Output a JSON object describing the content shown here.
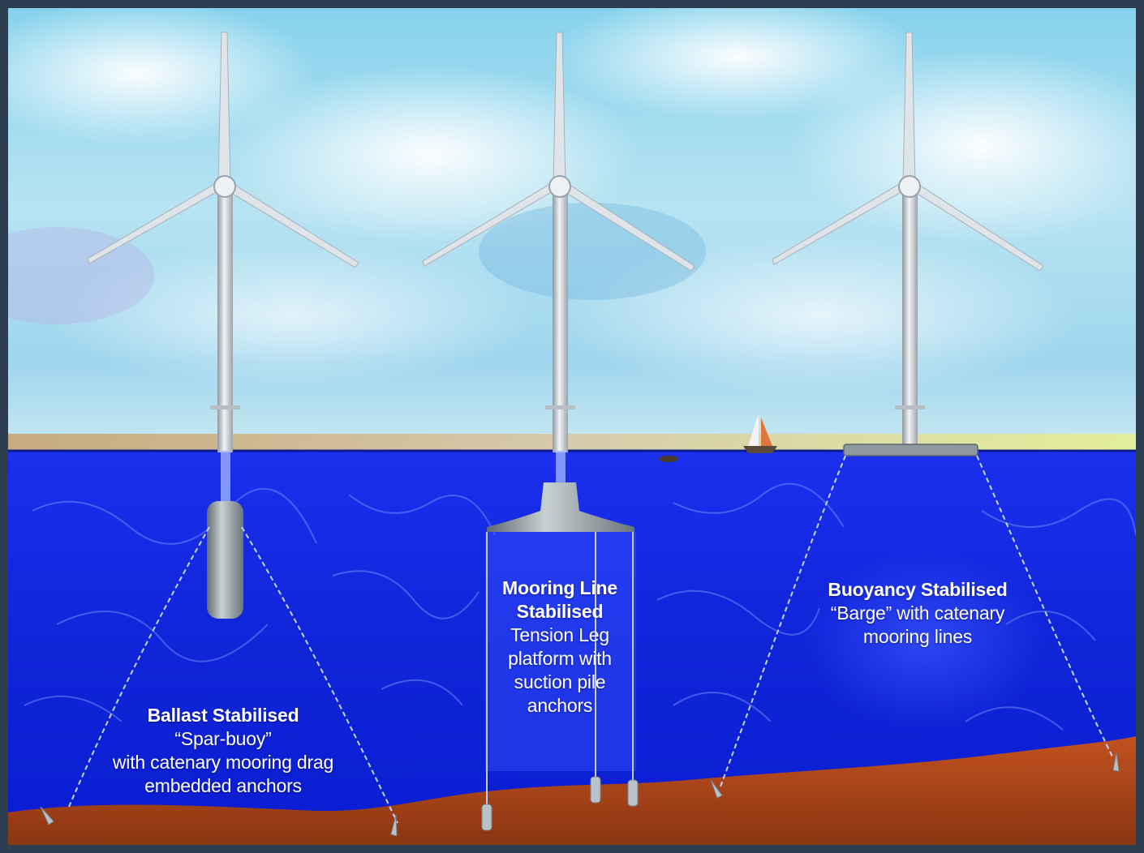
{
  "labels": {
    "ballast": {
      "title": "Ballast Stabilised",
      "line1": "“Spar-buoy”",
      "line2": "with catenary mooring drag",
      "line3": "embedded anchors"
    },
    "mooring": {
      "title1": "Mooring Line",
      "title2": "Stabilised",
      "line1": "Tension Leg",
      "line2": "platform with",
      "line3": "suction pile",
      "line4": "anchors"
    },
    "buoyancy": {
      "title": "Buoyancy Stabilised",
      "line1": "“Barge” with catenary",
      "line2": "mooring lines"
    }
  },
  "colors": {
    "frame": "#2c3e50",
    "sea_top": "#1428e6",
    "sea_bottom": "#0c1fcf",
    "seabed": "#b4481c",
    "sky_top": "#8cd3ec",
    "turbine": "#c9d0d6"
  }
}
